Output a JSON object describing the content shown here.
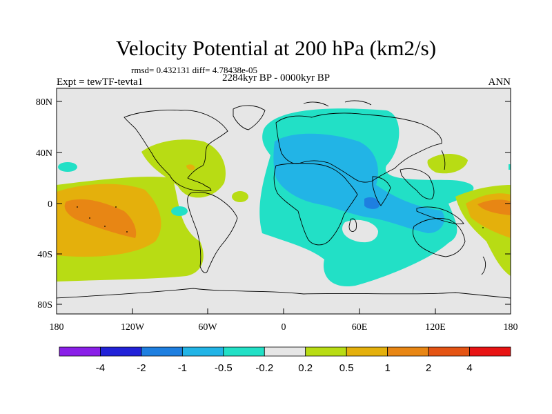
{
  "title": "Velocity Potential at 200 hPa (km2/s)",
  "stats": "rmsd= 0.432131  diff= 4.78438e-05",
  "experiment": "Expt = tewTF-tevta1",
  "period": "2284kyr BP - 0000kyr BP",
  "season": "ANN",
  "y_ticks": [
    "80N",
    "40N",
    "0",
    "40S",
    "80S"
  ],
  "x_ticks": [
    "180",
    "120W",
    "60W",
    "0",
    "60E",
    "120E",
    "180"
  ],
  "colorbar": {
    "colors": [
      "#8a1fe8",
      "#2222d8",
      "#1e7fe0",
      "#22b4e6",
      "#22e0c6",
      "#e6e6e6",
      "#b8dc14",
      "#e4b00c",
      "#e88614",
      "#e45414",
      "#e81414"
    ],
    "labels": [
      "-4",
      "-2",
      "-1",
      "-0.5",
      "-0.2",
      "0.2",
      "0.5",
      "1",
      "2",
      "4"
    ]
  },
  "colors": {
    "background_field": "#e6e6e6",
    "coast": "#000000"
  }
}
